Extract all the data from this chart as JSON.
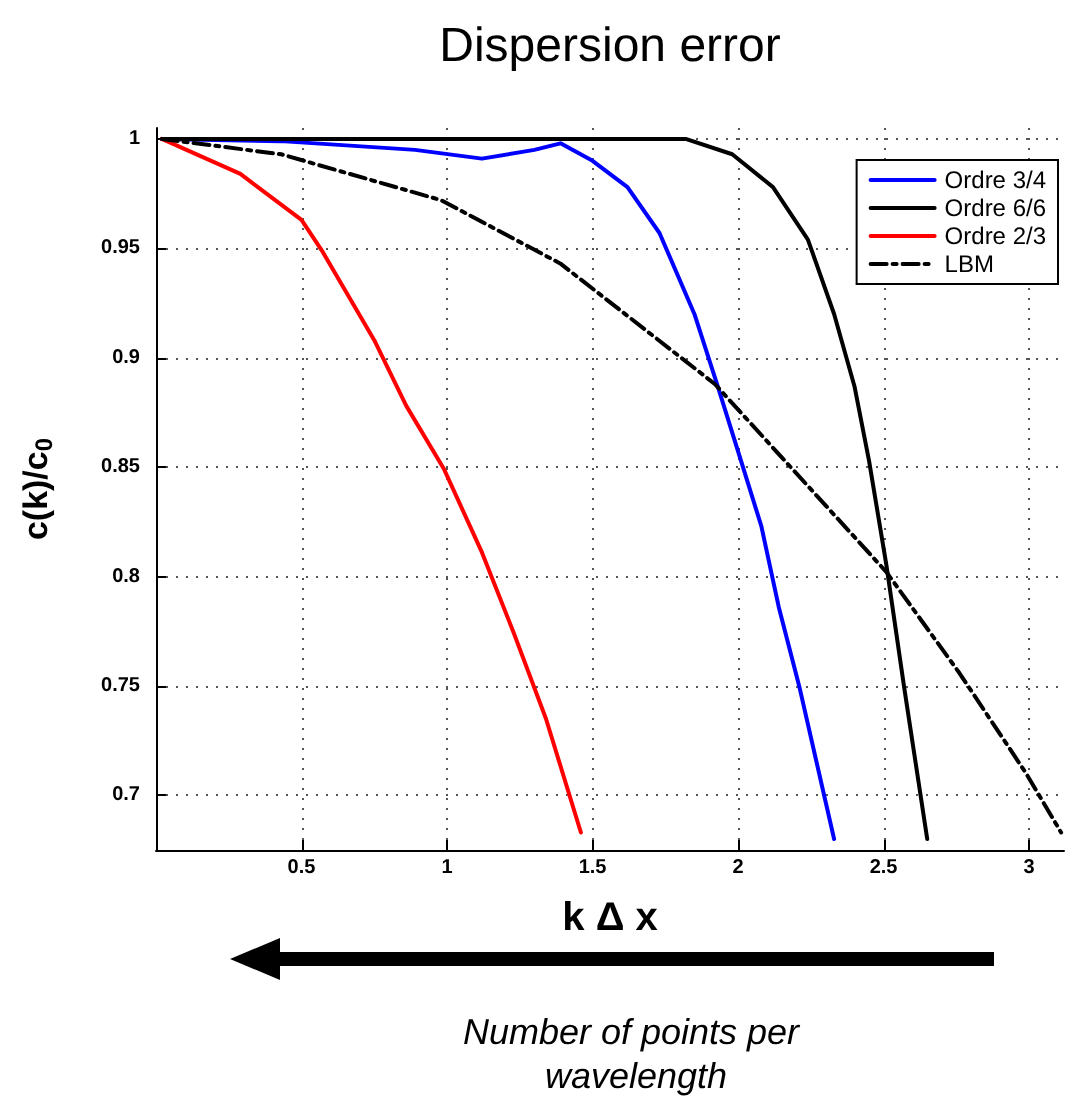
{
  "chart_data": {
    "type": "line",
    "title": "Dispersion error",
    "xlabel": "k Δ x",
    "ylabel": "c(k)/c$_{0}$",
    "annotations": [
      "Number of points per wavelength"
    ],
    "xlim": [
      0,
      3.12
    ],
    "ylim": [
      0.675,
      1.005
    ],
    "xticks": [
      0.5,
      1,
      1.5,
      2,
      2.5,
      3
    ],
    "yticks": [
      0.7,
      0.75,
      0.8,
      0.85,
      0.9,
      0.95,
      1
    ],
    "grid": true,
    "legend": "top right",
    "marker": "none",
    "series": [
      {
        "name": "Ordre 3/4",
        "color": "#0000ff",
        "line_style": "solid",
        "x": [
          0.02,
          0.43,
          0.89,
          1.12,
          1.3,
          1.39,
          1.5,
          1.62,
          1.73,
          1.85,
          1.93,
          2.01,
          2.08,
          2.14,
          2.21,
          2.33
        ],
        "values": [
          1.0,
          0.999,
          0.995,
          0.991,
          0.995,
          0.998,
          0.99,
          0.978,
          0.957,
          0.92,
          0.887,
          0.853,
          0.823,
          0.786,
          0.75,
          0.68
        ]
      },
      {
        "name": "Ordre 6/6",
        "color": "#000000",
        "line_style": "solid",
        "x": [
          0.02,
          1.0,
          1.82,
          1.98,
          2.12,
          2.24,
          2.33,
          2.4,
          2.45,
          2.51,
          2.57,
          2.65
        ],
        "values": [
          1.0,
          1.0,
          1.0,
          0.993,
          0.978,
          0.954,
          0.92,
          0.887,
          0.853,
          0.805,
          0.75,
          0.68
        ]
      },
      {
        "name": "Ordre 2/3",
        "color": "#ff0000",
        "line_style": "solid",
        "x": [
          0.02,
          0.29,
          0.5,
          0.57,
          0.75,
          0.86,
          0.99,
          1.12,
          1.23,
          1.34,
          1.46
        ],
        "values": [
          1.0,
          0.984,
          0.963,
          0.949,
          0.908,
          0.878,
          0.849,
          0.811,
          0.774,
          0.735,
          0.683
        ]
      },
      {
        "name": "LBM",
        "color": "#000000",
        "line_style": "dashed",
        "x": [
          0.02,
          0.43,
          0.98,
          1.39,
          1.92,
          2.51,
          2.76,
          2.99,
          3.11
        ],
        "values": [
          1.0,
          0.993,
          0.972,
          0.943,
          0.888,
          0.802,
          0.756,
          0.71,
          0.683
        ]
      }
    ]
  }
}
